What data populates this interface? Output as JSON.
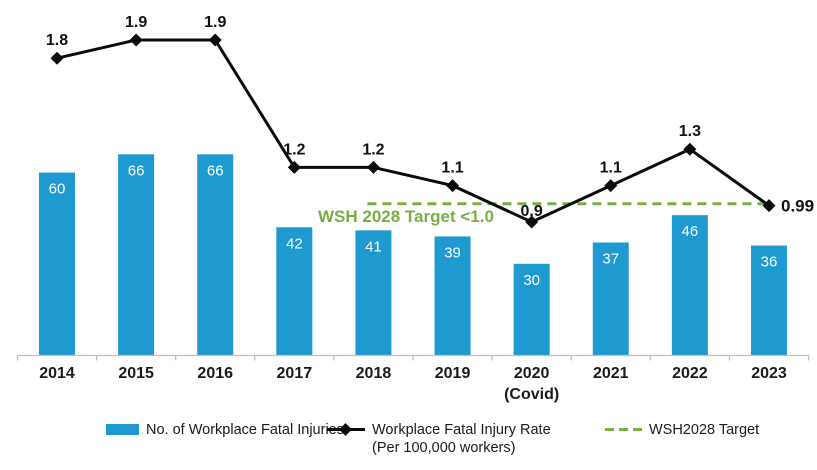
{
  "chart_data": {
    "type": "bar+line",
    "title": "",
    "categories": [
      "2014",
      "2015",
      "2016",
      "2017",
      "2018",
      "2019",
      "2020",
      "2021",
      "2022",
      "2023"
    ],
    "category_sublabels": [
      "",
      "",
      "",
      "",
      "",
      "",
      "(Covid)",
      "",
      "",
      ""
    ],
    "series": [
      {
        "name": "No. of Workplace Fatal Injuries",
        "type": "bar",
        "values": [
          60,
          66,
          66,
          42,
          41,
          39,
          30,
          37,
          46,
          36
        ],
        "color": "#1E9AD0",
        "value_labels_inside_bars": true
      },
      {
        "name": "Workplace Fatal Injury Rate (Per 100,000 workers)",
        "type": "line",
        "values": [
          1.8,
          1.9,
          1.9,
          1.2,
          1.2,
          1.1,
          0.9,
          1.1,
          1.3,
          0.99
        ],
        "point_labels": [
          "1.8",
          "1.9",
          "1.9",
          "1.2",
          "1.2",
          "1.1",
          "0.9",
          "1.1",
          "1.3",
          "0.99"
        ],
        "marker": "diamond",
        "color": "#0B0B0B"
      }
    ],
    "target_line": {
      "value": 1.0,
      "annotation": "WSH 2028 Target <1.0",
      "style": "dashed",
      "color": "#76B043",
      "span_from_category": "2018",
      "span_to_category": "2023"
    },
    "axes": {
      "x_axis_visible": true,
      "y_axis_visible": false,
      "gridlines": false,
      "axis_color": "#BFBFBF"
    },
    "legend": {
      "position": "bottom",
      "items": [
        {
          "label": "No. of Workplace Fatal Injuries",
          "marker": "bar-swatch",
          "color": "#1E9AD0"
        },
        {
          "label": "Workplace Fatal Injury Rate",
          "label_line2": "(Per 100,000 workers)",
          "marker": "line-diamond",
          "color": "#0B0B0B"
        },
        {
          "label": "WSH2028 Target",
          "marker": "dashed-line",
          "color": "#76B043"
        }
      ]
    }
  }
}
